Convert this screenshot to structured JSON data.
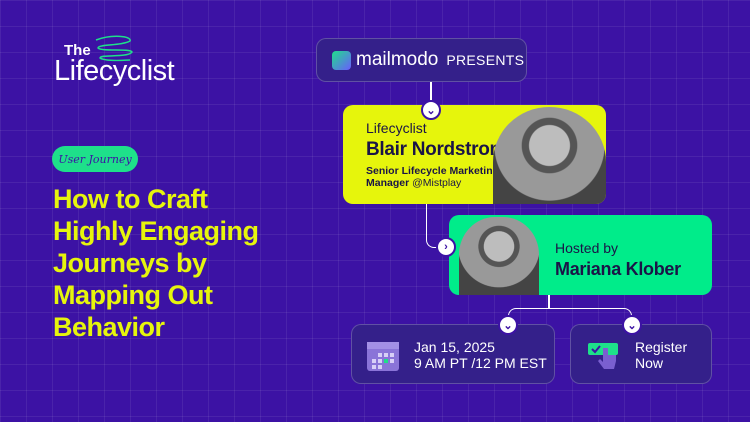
{
  "brand": {
    "logo_top": "The",
    "logo_main": "Lifecyclist"
  },
  "tag": "User Journey",
  "title_lines": [
    "How to Craft",
    "Highly Engaging",
    "Journeys by",
    "Mapping Out",
    "Behavior"
  ],
  "presenter": {
    "logo": "mailmodo",
    "label": "PRESENTS"
  },
  "speaker": {
    "role": "Lifecyclist",
    "name": "Blair Nordstrom",
    "position_bold": "Senior Lifecycle Marketing Manager",
    "company": "@Mistplay"
  },
  "host": {
    "label": "Hosted by",
    "name": "Mariana Klober"
  },
  "event": {
    "date": "Jan 15, 2025",
    "time": "9 AM PT /12 PM EST"
  },
  "register": {
    "line1": "Register",
    "line2": "Now"
  },
  "colors": {
    "background": "#3c12a4",
    "yellow": "#e6f50c",
    "green": "#00ec8a"
  }
}
